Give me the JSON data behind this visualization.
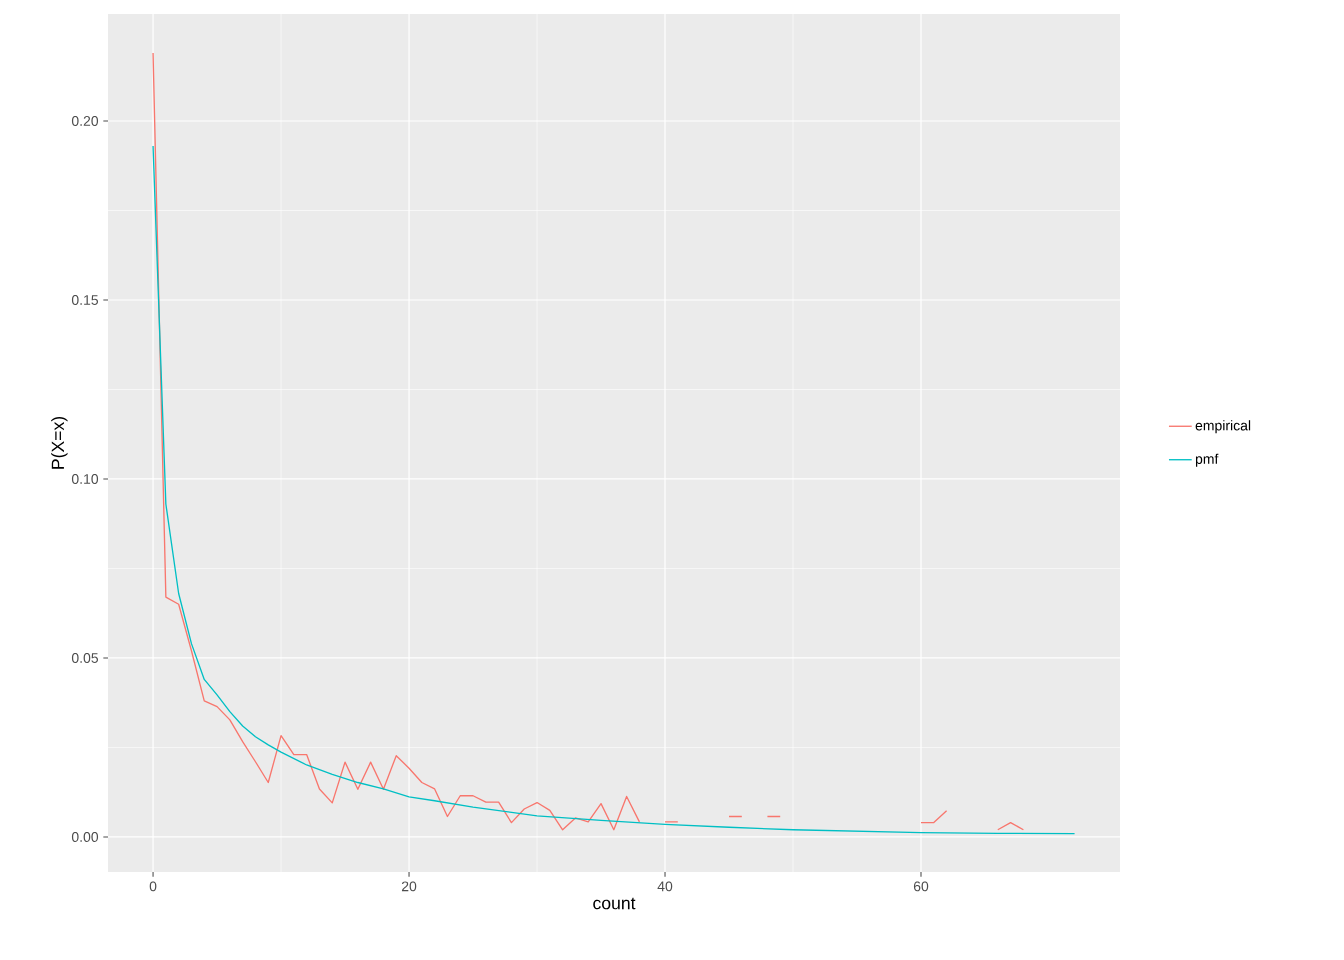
{
  "chart_data": {
    "type": "line",
    "xlabel": "count",
    "ylabel": "P(X=x)",
    "xlim": [
      -3.52,
      75.55
    ],
    "ylim": [
      -0.0098,
      0.2299
    ],
    "xticks": [
      0,
      20,
      40,
      60
    ],
    "yticks": [
      {
        "value": 0,
        "label": "0.00"
      },
      {
        "value": 0.05,
        "label": "0.05"
      },
      {
        "value": 0.1,
        "label": "0.10"
      },
      {
        "value": 0.15,
        "label": "0.15"
      },
      {
        "value": 0.2,
        "label": "0.20"
      }
    ],
    "grid": true,
    "legend": "right",
    "line_style": "solid",
    "marker": "none",
    "series": [
      {
        "name": "empirical",
        "color": "#F8766D",
        "x": [
          0,
          1,
          2,
          3,
          4,
          5,
          6,
          7,
          8,
          9,
          10,
          11,
          12,
          13,
          14,
          15,
          16,
          17,
          18,
          19,
          20,
          21,
          22,
          23,
          24,
          25,
          26,
          27,
          28,
          29,
          30,
          31,
          32,
          33,
          34,
          35,
          36,
          37,
          38,
          39,
          40,
          41,
          42,
          43,
          44,
          45,
          46,
          47,
          48,
          49,
          50,
          51,
          52,
          53,
          54,
          55,
          56,
          57,
          58,
          59,
          60,
          61,
          62,
          63,
          64,
          65,
          66,
          67,
          68
        ],
        "values": [
          0.219,
          0.067,
          0.065,
          0.052,
          0.038,
          0.0364,
          0.0327,
          0.0266,
          0.021,
          0.0152,
          0.0283,
          0.023,
          0.023,
          0.0134,
          0.0095,
          0.0209,
          0.0133,
          0.0209,
          0.0133,
          0.0227,
          0.0192,
          0.0152,
          0.0134,
          0.0057,
          0.0115,
          0.0115,
          0.0097,
          0.0097,
          0.004,
          0.0078,
          0.0096,
          0.0074,
          0.002,
          0.0053,
          0.0042,
          0.0093,
          0.002,
          0.0113,
          0.0042,
          null,
          0.0042,
          0.0042,
          null,
          null,
          null,
          0.0057,
          0.0057,
          null,
          0.0057,
          0.0057,
          null,
          null,
          null,
          null,
          null,
          null,
          null,
          null,
          null,
          null,
          0.004,
          0.004,
          0.0073,
          null,
          null,
          null,
          0.002,
          0.004,
          0.002
        ]
      },
      {
        "name": "pmf",
        "color": "#00BFC4",
        "x": [
          0,
          1,
          2,
          3,
          4,
          5,
          6,
          7,
          8,
          9,
          10,
          12,
          14,
          16,
          18,
          20,
          22,
          25,
          30,
          35,
          40,
          45,
          50,
          55,
          60,
          66,
          72
        ],
        "values": [
          0.193,
          0.093,
          0.068,
          0.054,
          0.044,
          0.0397,
          0.035,
          0.031,
          0.028,
          0.0257,
          0.0237,
          0.0201,
          0.0175,
          0.0152,
          0.0134,
          0.0112,
          0.0101,
          0.0083,
          0.0059,
          0.0046,
          0.0035,
          0.0027,
          0.002,
          0.0016,
          0.0012,
          0.001,
          0.0009
        ]
      }
    ]
  }
}
